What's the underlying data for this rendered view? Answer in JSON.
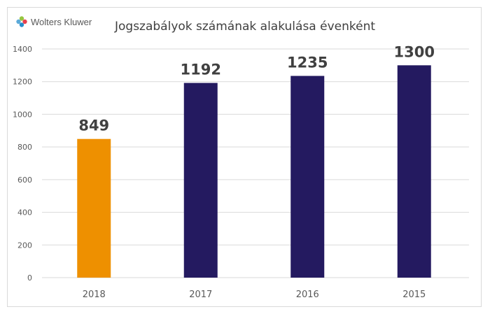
{
  "brand": {
    "name": "Wolters Kluwer",
    "logo_colors": [
      "#85bc20",
      "#e5202e",
      "#007ac3",
      "#409bd2"
    ]
  },
  "chart_data": {
    "type": "bar",
    "title": "Jogszabályok számának alakulása évenként",
    "xlabel": "",
    "ylabel": "",
    "categories": [
      "2018",
      "2017",
      "2016",
      "2015"
    ],
    "values": [
      849,
      1192,
      1235,
      1300
    ],
    "data_labels": [
      "849",
      "1192",
      "1235",
      "1300"
    ],
    "bar_colors": [
      "#ee9000",
      "#241a60",
      "#241a60",
      "#241a60"
    ],
    "ylim": [
      0,
      1400
    ],
    "yticks": [
      "0",
      "200",
      "400",
      "600",
      "800",
      "1000",
      "1200",
      "1400"
    ],
    "grid": true,
    "legend": "none"
  }
}
